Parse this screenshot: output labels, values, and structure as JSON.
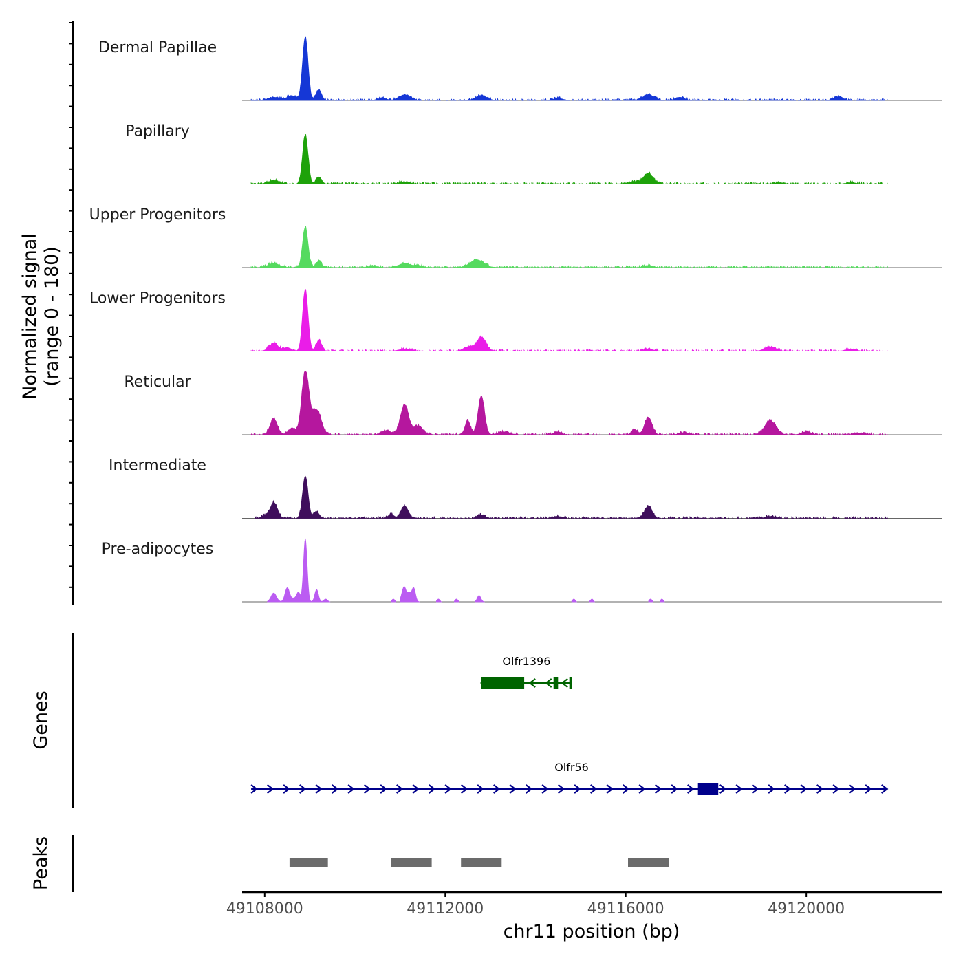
{
  "chart_data": {
    "type": "area",
    "y_axis_title_line1": "Normalized signal",
    "y_axis_title_line2": "(range 0 - 180)",
    "xlabel": "chr11 position (bp)",
    "x_range": [
      49107500,
      49123000
    ],
    "x_ticks": [
      49108000,
      49112000,
      49116000,
      49120000
    ],
    "x_tick_labels": [
      "49108000",
      "49112000",
      "49116000",
      "49120000"
    ],
    "y_range": [
      0,
      180
    ],
    "series": [
      {
        "name": "Dermal Papillae",
        "color": "#1537D6",
        "coverage": [
          49107700,
          49121800
        ],
        "peaks": [
          [
            49108900,
            180,
            60
          ],
          [
            49109200,
            30,
            60
          ],
          [
            49108600,
            12,
            120
          ],
          [
            49108200,
            9,
            120
          ],
          [
            49111100,
            16,
            120
          ],
          [
            49112800,
            14,
            120
          ],
          [
            49116500,
            16,
            120
          ],
          [
            49117200,
            9,
            100
          ],
          [
            49120700,
            9,
            100
          ],
          [
            49114500,
            6,
            100
          ],
          [
            49110600,
            6,
            100
          ]
        ]
      },
      {
        "name": "Papillary",
        "color": "#1EA20A",
        "coverage": [
          49107700,
          49121800
        ],
        "peaks": [
          [
            49108900,
            140,
            60
          ],
          [
            49109200,
            20,
            60
          ],
          [
            49108200,
            10,
            120
          ],
          [
            49116500,
            30,
            100
          ],
          [
            49116200,
            6,
            150
          ],
          [
            49111100,
            6,
            120
          ],
          [
            49119400,
            4,
            100
          ],
          [
            49121000,
            4,
            100
          ]
        ]
      },
      {
        "name": "Upper Progenitors",
        "color": "#55DA5F",
        "coverage": [
          49107700,
          49121800
        ],
        "peaks": [
          [
            49108900,
            115,
            60
          ],
          [
            49109200,
            18,
            60
          ],
          [
            49108200,
            12,
            120
          ],
          [
            49112700,
            22,
            150
          ],
          [
            49111100,
            12,
            120
          ],
          [
            49111400,
            6,
            100
          ],
          [
            49116500,
            6,
            100
          ],
          [
            49110400,
            4,
            100
          ]
        ]
      },
      {
        "name": "Lower Progenitors",
        "color": "#EA1DE8",
        "coverage": [
          49107700,
          49121800
        ],
        "peaks": [
          [
            49108900,
            175,
            60
          ],
          [
            49109200,
            30,
            60
          ],
          [
            49108200,
            22,
            100
          ],
          [
            49108500,
            10,
            80
          ],
          [
            49112800,
            40,
            100
          ],
          [
            49112500,
            12,
            100
          ],
          [
            49119200,
            12,
            120
          ],
          [
            49111100,
            6,
            120
          ],
          [
            49116500,
            6,
            100
          ],
          [
            49121000,
            6,
            100
          ]
        ]
      },
      {
        "name": "Reticular",
        "color": "#B5179E",
        "coverage": [
          49107700,
          49121800
        ],
        "peaks": [
          [
            49108900,
            180,
            80
          ],
          [
            49109150,
            70,
            100
          ],
          [
            49108200,
            45,
            80
          ],
          [
            49108600,
            18,
            80
          ],
          [
            49111100,
            85,
            90
          ],
          [
            49111400,
            25,
            100
          ],
          [
            49110700,
            12,
            100
          ],
          [
            49112800,
            110,
            70
          ],
          [
            49112500,
            40,
            60
          ],
          [
            49113300,
            8,
            120
          ],
          [
            49116500,
            50,
            80
          ],
          [
            49116200,
            15,
            60
          ],
          [
            49119200,
            40,
            120
          ],
          [
            49117300,
            6,
            100
          ],
          [
            49114500,
            8,
            80
          ],
          [
            49120000,
            8,
            100
          ],
          [
            49121200,
            5,
            100
          ]
        ]
      },
      {
        "name": "Intermediate",
        "color": "#3F0E5C",
        "coverage": [
          49107700,
          49121800
        ],
        "peaks": [
          [
            49108900,
            120,
            60
          ],
          [
            49109150,
            18,
            60
          ],
          [
            49108200,
            45,
            80
          ],
          [
            49108000,
            8,
            60
          ],
          [
            49111100,
            35,
            80
          ],
          [
            49110800,
            12,
            60
          ],
          [
            49112800,
            10,
            80
          ],
          [
            49116500,
            35,
            80
          ],
          [
            49114500,
            5,
            80
          ],
          [
            49119200,
            5,
            100
          ]
        ]
      },
      {
        "name": "Pre-adipocytes",
        "color": "#BB5CF2",
        "coverage": [
          49108000,
          49117000
        ],
        "segments": [
          [
            49108050,
            49109450
          ],
          [
            49110800,
            49110900
          ],
          [
            49111000,
            49111500
          ],
          [
            49111800,
            49111900
          ],
          [
            49112200,
            49112300
          ],
          [
            49112650,
            49112850
          ],
          [
            49114800,
            49114900
          ],
          [
            49115200,
            49115300
          ],
          [
            49116500,
            49116600
          ],
          [
            49116750,
            49116850
          ]
        ],
        "peaks": [
          [
            49108900,
            180,
            40
          ],
          [
            49109150,
            35,
            40
          ],
          [
            49108500,
            40,
            50
          ],
          [
            49108200,
            25,
            60
          ],
          [
            49108750,
            25,
            40
          ],
          [
            49108650,
            10,
            60
          ],
          [
            49109350,
            8,
            40
          ],
          [
            49111100,
            35,
            40
          ],
          [
            49111300,
            40,
            40
          ],
          [
            49111200,
            25,
            40
          ],
          [
            49111050,
            15,
            40
          ],
          [
            49112750,
            18,
            40
          ],
          [
            49110850,
            8,
            30
          ],
          [
            49111850,
            8,
            30
          ],
          [
            49112250,
            8,
            30
          ],
          [
            49114850,
            8,
            30
          ],
          [
            49115250,
            8,
            30
          ],
          [
            49116550,
            8,
            30
          ],
          [
            49116800,
            8,
            30
          ]
        ]
      }
    ],
    "genes": [
      {
        "name": "Olfr1396",
        "strand": "-",
        "color": "#006400",
        "start": 49112800,
        "end": 49114800,
        "exons": [
          [
            49112800,
            49113750
          ],
          [
            49114400,
            49114500
          ],
          [
            49114750,
            49114800
          ]
        ]
      },
      {
        "name": "Olfr56",
        "strand": "+",
        "color": "#00008B",
        "start": 49107700,
        "end": 49121800,
        "exons": [
          [
            49117600,
            49118050
          ]
        ]
      }
    ],
    "peaks_track": {
      "color": "#6B6B6B",
      "regions": [
        [
          49108550,
          49109400
        ],
        [
          49110800,
          49111700
        ],
        [
          49112350,
          49113250
        ],
        [
          49116050,
          49116950
        ]
      ]
    },
    "track_titles": {
      "genes": "Genes",
      "peaks": "Peaks"
    }
  }
}
